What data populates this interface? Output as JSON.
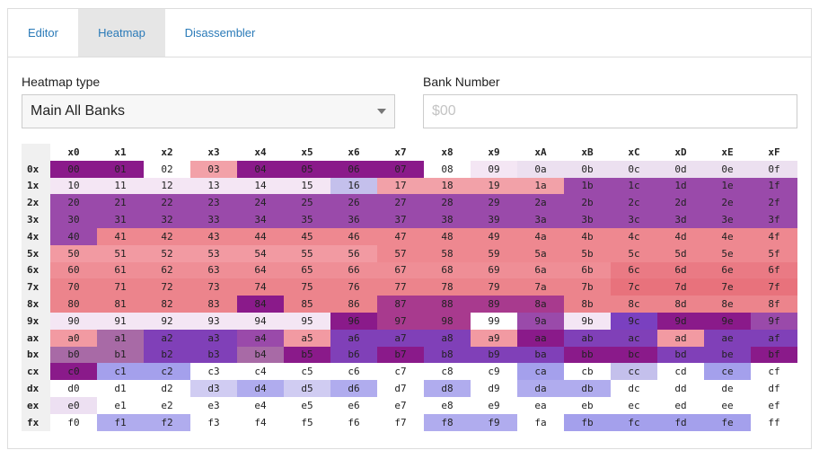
{
  "tabs": [
    {
      "label": "Editor",
      "active": false
    },
    {
      "label": "Heatmap",
      "active": true
    },
    {
      "label": "Disassembler",
      "active": false
    }
  ],
  "heatmap_type": {
    "label": "Heatmap type",
    "value": "Main All Banks"
  },
  "bank_number": {
    "label": "Bank Number",
    "placeholder": "$00",
    "value": ""
  },
  "grid": {
    "column_headers": [
      "x0",
      "x1",
      "x2",
      "x3",
      "x4",
      "x5",
      "x6",
      "x7",
      "x8",
      "x9",
      "xA",
      "xB",
      "xC",
      "xD",
      "xE",
      "xF"
    ],
    "row_headers": [
      "0x",
      "1x",
      "2x",
      "3x",
      "4x",
      "5x",
      "6x",
      "7x",
      "8x",
      "9x",
      "ax",
      "bx",
      "cx",
      "dx",
      "ex",
      "fx"
    ],
    "cells": [
      [
        "00",
        "01",
        "02",
        "03",
        "04",
        "05",
        "06",
        "07",
        "08",
        "09",
        "0a",
        "0b",
        "0c",
        "0d",
        "0e",
        "0f"
      ],
      [
        "10",
        "11",
        "12",
        "13",
        "14",
        "15",
        "16",
        "17",
        "18",
        "19",
        "1a",
        "1b",
        "1c",
        "1d",
        "1e",
        "1f"
      ],
      [
        "20",
        "21",
        "22",
        "23",
        "24",
        "25",
        "26",
        "27",
        "28",
        "29",
        "2a",
        "2b",
        "2c",
        "2d",
        "2e",
        "2f"
      ],
      [
        "30",
        "31",
        "32",
        "33",
        "34",
        "35",
        "36",
        "37",
        "38",
        "39",
        "3a",
        "3b",
        "3c",
        "3d",
        "3e",
        "3f"
      ],
      [
        "40",
        "41",
        "42",
        "43",
        "44",
        "45",
        "46",
        "47",
        "48",
        "49",
        "4a",
        "4b",
        "4c",
        "4d",
        "4e",
        "4f"
      ],
      [
        "50",
        "51",
        "52",
        "53",
        "54",
        "55",
        "56",
        "57",
        "58",
        "59",
        "5a",
        "5b",
        "5c",
        "5d",
        "5e",
        "5f"
      ],
      [
        "60",
        "61",
        "62",
        "63",
        "64",
        "65",
        "66",
        "67",
        "68",
        "69",
        "6a",
        "6b",
        "6c",
        "6d",
        "6e",
        "6f"
      ],
      [
        "70",
        "71",
        "72",
        "73",
        "74",
        "75",
        "76",
        "77",
        "78",
        "79",
        "7a",
        "7b",
        "7c",
        "7d",
        "7e",
        "7f"
      ],
      [
        "80",
        "81",
        "82",
        "83",
        "84",
        "85",
        "86",
        "87",
        "88",
        "89",
        "8a",
        "8b",
        "8c",
        "8d",
        "8e",
        "8f"
      ],
      [
        "90",
        "91",
        "92",
        "93",
        "94",
        "95",
        "96",
        "97",
        "98",
        "99",
        "9a",
        "9b",
        "9c",
        "9d",
        "9e",
        "9f"
      ],
      [
        "a0",
        "a1",
        "a2",
        "a3",
        "a4",
        "a5",
        "a6",
        "a7",
        "a8",
        "a9",
        "aa",
        "ab",
        "ac",
        "ad",
        "ae",
        "af"
      ],
      [
        "b0",
        "b1",
        "b2",
        "b3",
        "b4",
        "b5",
        "b6",
        "b7",
        "b8",
        "b9",
        "ba",
        "bb",
        "bc",
        "bd",
        "be",
        "bf"
      ],
      [
        "c0",
        "c1",
        "c2",
        "c3",
        "c4",
        "c5",
        "c6",
        "c7",
        "c8",
        "c9",
        "ca",
        "cb",
        "cc",
        "cd",
        "ce",
        "cf"
      ],
      [
        "d0",
        "d1",
        "d2",
        "d3",
        "d4",
        "d5",
        "d6",
        "d7",
        "d8",
        "d9",
        "da",
        "db",
        "dc",
        "dd",
        "de",
        "df"
      ],
      [
        "e0",
        "e1",
        "e2",
        "e3",
        "e4",
        "e5",
        "e6",
        "e7",
        "e8",
        "e9",
        "ea",
        "eb",
        "ec",
        "ed",
        "ee",
        "ef"
      ],
      [
        "f0",
        "f1",
        "f2",
        "f3",
        "f4",
        "f5",
        "f6",
        "f7",
        "f8",
        "f9",
        "fa",
        "fb",
        "fc",
        "fd",
        "fe",
        "ff"
      ]
    ],
    "heat_colors": [
      [
        "#8a1a8a",
        "#8a1a8a",
        "#ffffff",
        "#f2a1a8",
        "#8a1a8a",
        "#8a1a8a",
        "#8a1a8a",
        "#8a1a8a",
        "#ffffff",
        "#f4e6f4",
        "#ece0f0",
        "#ece0f0",
        "#ece0f0",
        "#ece0f0",
        "#ece0f0",
        "#ece0f0"
      ],
      [
        "#f4e6f4",
        "#f4e6f4",
        "#f4e6f4",
        "#f4e6f4",
        "#f4e6f4",
        "#f4e6f4",
        "#c4c0ec",
        "#f2a1a8",
        "#f2a1a8",
        "#f2a1a8",
        "#f2a1a8",
        "#9a4aaa",
        "#9a4aaa",
        "#9a4aaa",
        "#9a4aaa",
        "#9a4aaa"
      ],
      [
        "#9a4aaa",
        "#9a4aaa",
        "#9a4aaa",
        "#9a4aaa",
        "#9a4aaa",
        "#9a4aaa",
        "#9a4aaa",
        "#9a4aaa",
        "#9a4aaa",
        "#9a4aaa",
        "#9a4aaa",
        "#9a4aaa",
        "#9a4aaa",
        "#9a4aaa",
        "#9a4aaa",
        "#9a4aaa"
      ],
      [
        "#9a4aaa",
        "#9a4aaa",
        "#9a4aaa",
        "#9a4aaa",
        "#9a4aaa",
        "#9a4aaa",
        "#9a4aaa",
        "#9a4aaa",
        "#9a4aaa",
        "#9a4aaa",
        "#9a4aaa",
        "#9a4aaa",
        "#9a4aaa",
        "#9a4aaa",
        "#9a4aaa",
        "#9a4aaa"
      ],
      [
        "#9a4aaa",
        "#ee8890",
        "#ee8890",
        "#ee8890",
        "#ee8890",
        "#ee8890",
        "#ee8890",
        "#ee8890",
        "#ee8890",
        "#ee8890",
        "#ee8890",
        "#ee8890",
        "#ee8890",
        "#ee8890",
        "#ee8890",
        "#ee8890"
      ],
      [
        "#f29aa2",
        "#f29aa2",
        "#f29aa2",
        "#f29aa2",
        "#f29aa2",
        "#f29aa2",
        "#f29aa2",
        "#ee8890",
        "#ee8890",
        "#ee8890",
        "#ee8890",
        "#ee8890",
        "#ee8890",
        "#ee8890",
        "#ee8890",
        "#ee8890"
      ],
      [
        "#ef8e96",
        "#ef8e96",
        "#ef8e96",
        "#ef8e96",
        "#ef8e96",
        "#ef8e96",
        "#ef8e96",
        "#ef8e96",
        "#ef8e96",
        "#ef8e96",
        "#ef8e96",
        "#ef8e96",
        "#ea7a84",
        "#ea7a84",
        "#ea7a84",
        "#ea7a84"
      ],
      [
        "#ec848c",
        "#ec848c",
        "#ec848c",
        "#ec848c",
        "#ec848c",
        "#ec848c",
        "#ec848c",
        "#ec848c",
        "#ec848c",
        "#ec848c",
        "#ec848c",
        "#ec848c",
        "#e8727c",
        "#e8727c",
        "#e8727c",
        "#e8727c"
      ],
      [
        "#ec848c",
        "#ec848c",
        "#ec848c",
        "#ec848c",
        "#8a1a8a",
        "#ec848c",
        "#ec848c",
        "#a83a8e",
        "#a83a8e",
        "#a83a8e",
        "#a83a8e",
        "#ec848c",
        "#ec848c",
        "#ec848c",
        "#ec848c",
        "#ec848c"
      ],
      [
        "#f4e6f4",
        "#f4e6f4",
        "#f4e6f4",
        "#f4e6f4",
        "#f4e6f4",
        "#f4e6f4",
        "#8a1a8a",
        "#a83a8e",
        "#a83a8e",
        "#ffffff",
        "#9a4aaa",
        "#f4e6f4",
        "#7a40c0",
        "#8a1a8a",
        "#8a1a8a",
        "#9a4aaa"
      ],
      [
        "#f29aa2",
        "#a86aa6",
        "#8040b8",
        "#8040b8",
        "#9a4aaa",
        "#f29aa2",
        "#8040b8",
        "#8040b8",
        "#8040b8",
        "#f29aa2",
        "#8a1a8a",
        "#8040b8",
        "#8040b8",
        "#f29aa2",
        "#8040b8",
        "#8040b8"
      ],
      [
        "#a86aa6",
        "#a86aa6",
        "#8040b8",
        "#8040b8",
        "#a86aa6",
        "#8a1a8a",
        "#8040b8",
        "#8a1a8a",
        "#8040b8",
        "#8040b8",
        "#8040b8",
        "#8a1a8a",
        "#8a1a8a",
        "#8040b8",
        "#8040b8",
        "#8a1a8a"
      ],
      [
        "#8a1a8a",
        "#a4a0ec",
        "#a4a0ec",
        "#ffffff",
        "#ffffff",
        "#ffffff",
        "#ffffff",
        "#ffffff",
        "#ffffff",
        "#ffffff",
        "#a4a0ec",
        "#ffffff",
        "#c4c0ec",
        "#ffffff",
        "#a4a0ec",
        "#ffffff"
      ],
      [
        "#ffffff",
        "#ffffff",
        "#ffffff",
        "#d0ccf2",
        "#b0acee",
        "#d0ccf2",
        "#b0acee",
        "#ffffff",
        "#b0acee",
        "#ffffff",
        "#b0acee",
        "#b0acee",
        "#ffffff",
        "#ffffff",
        "#ffffff",
        "#ffffff"
      ],
      [
        "#ede0f2",
        "#ffffff",
        "#ffffff",
        "#ffffff",
        "#ffffff",
        "#ffffff",
        "#ffffff",
        "#ffffff",
        "#ffffff",
        "#ffffff",
        "#ffffff",
        "#ffffff",
        "#ffffff",
        "#ffffff",
        "#ffffff",
        "#ffffff"
      ],
      [
        "#ffffff",
        "#b0acee",
        "#b0acee",
        "#ffffff",
        "#ffffff",
        "#ffffff",
        "#ffffff",
        "#ffffff",
        "#b0acee",
        "#b0acee",
        "#ffffff",
        "#a4a0ec",
        "#a4a0ec",
        "#a4a0ec",
        "#a4a0ec",
        "#ffffff"
      ]
    ]
  }
}
